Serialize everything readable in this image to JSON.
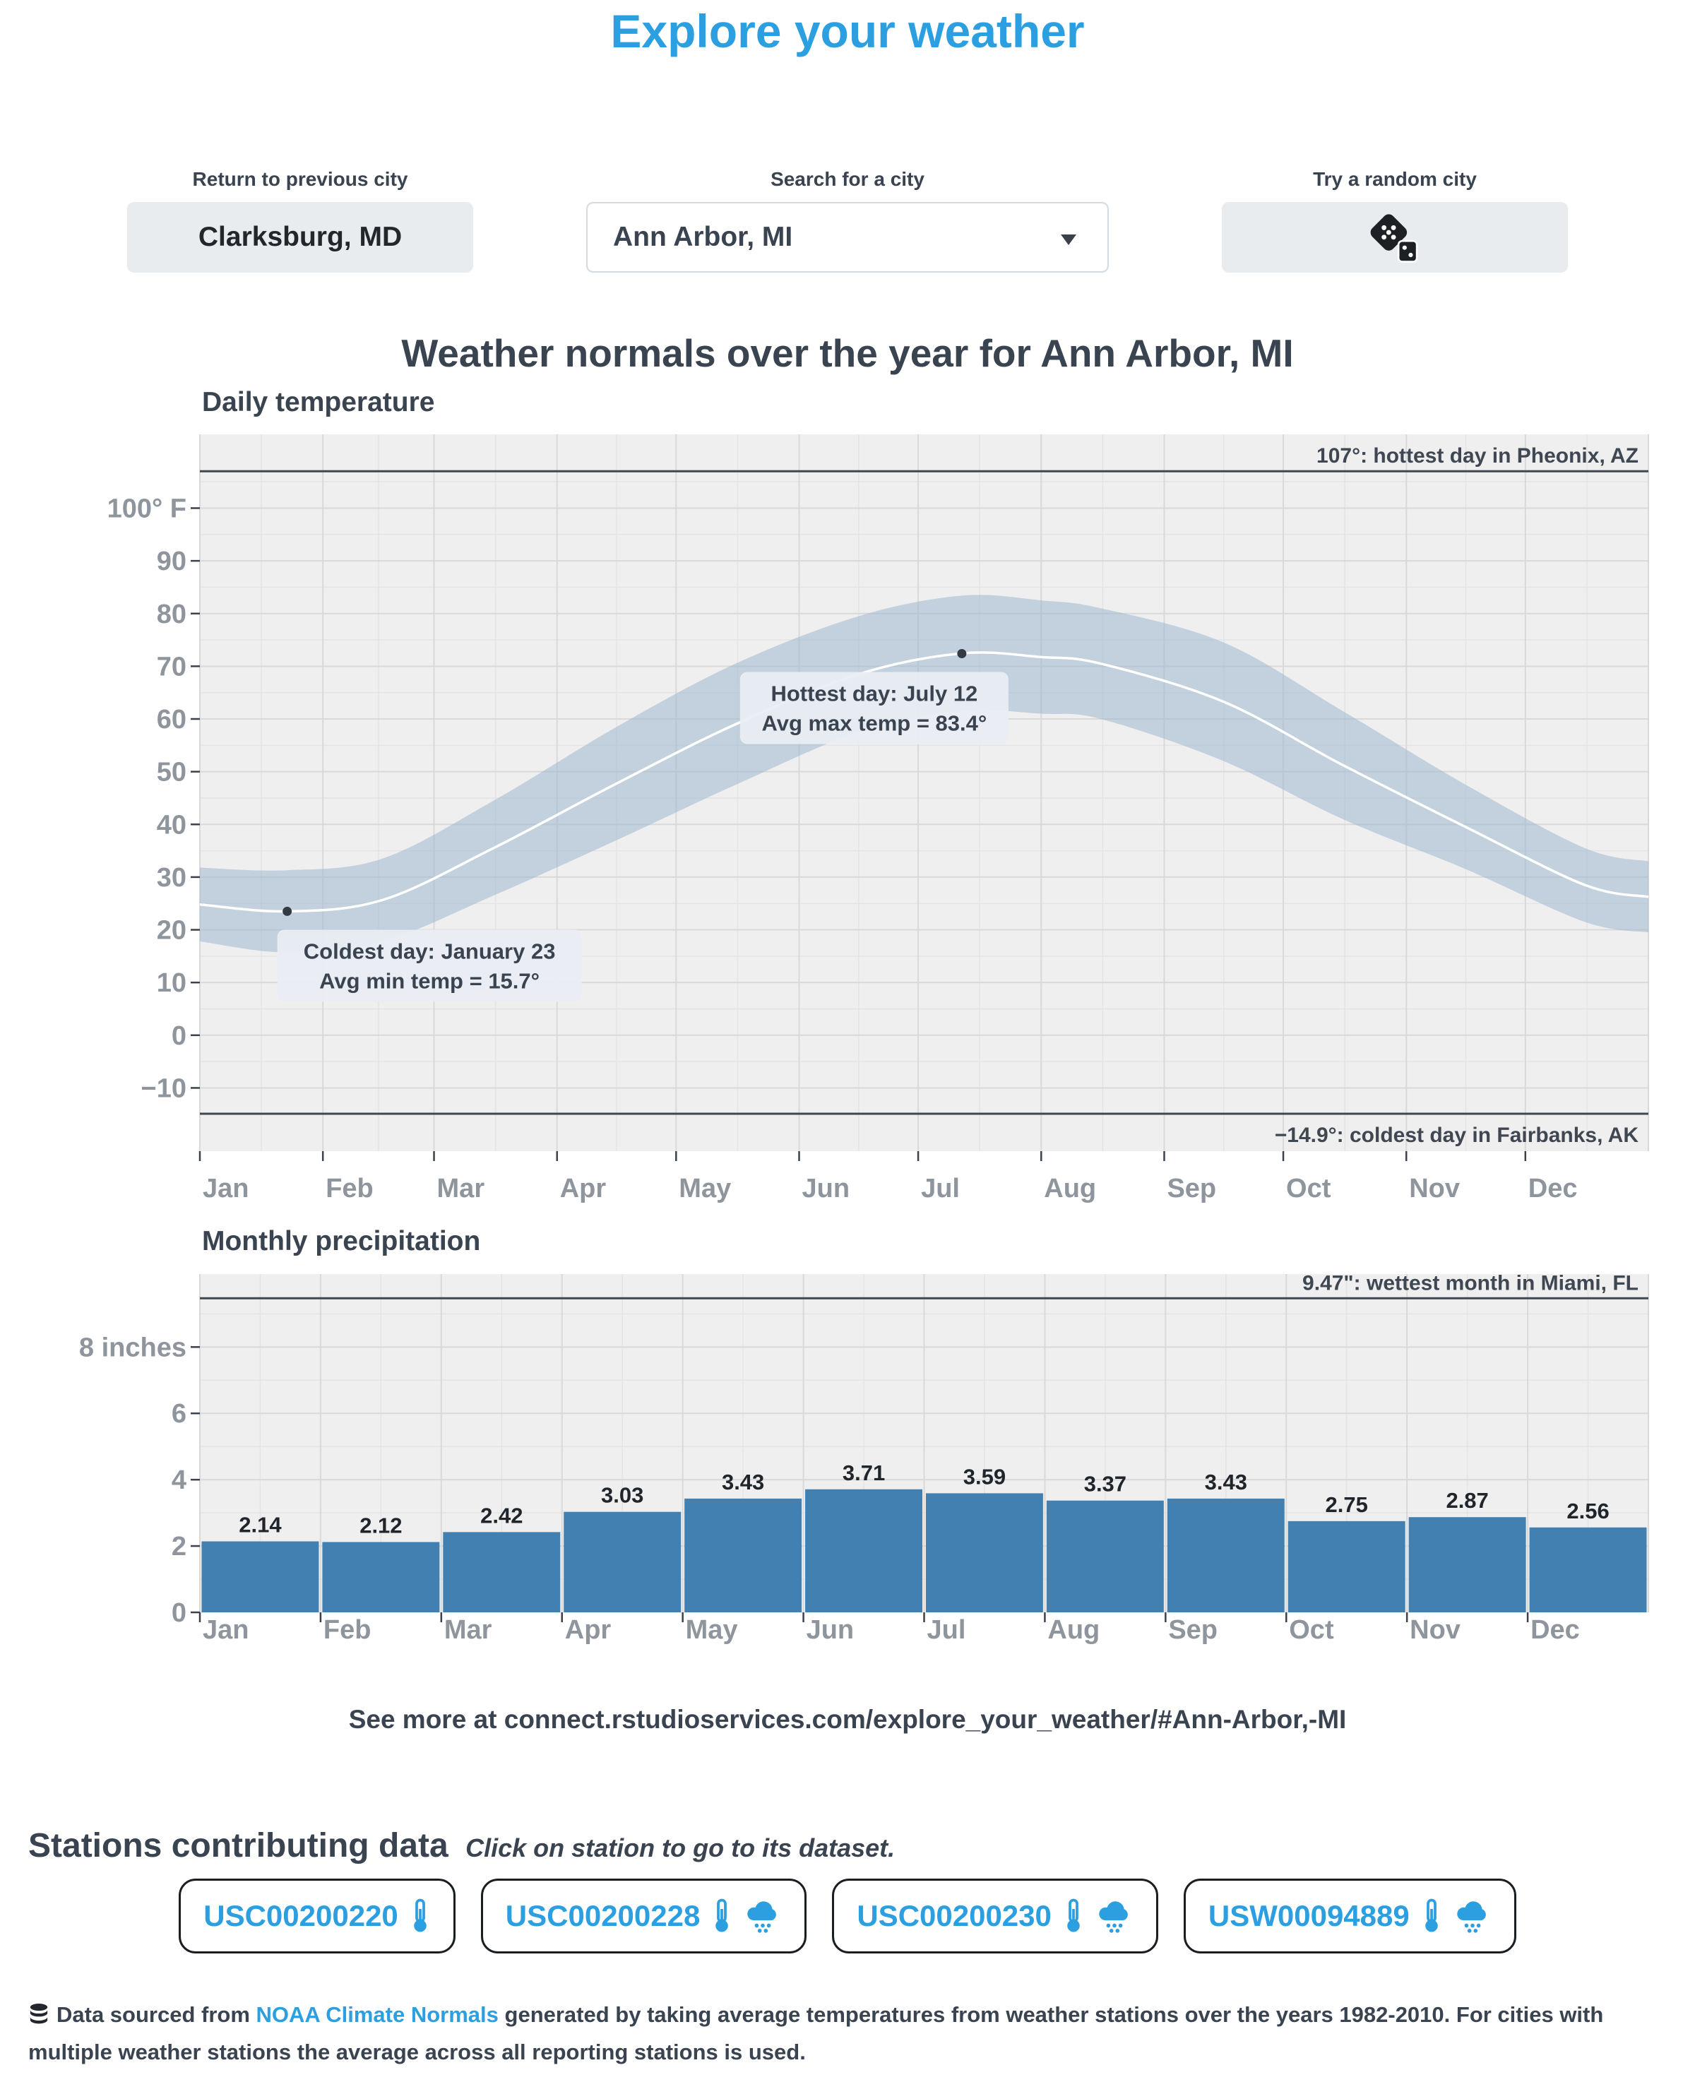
{
  "app": {
    "title": "Explore your weather"
  },
  "controls": {
    "previous": {
      "label": "Return to previous city",
      "button": "Clarksburg, MD"
    },
    "search": {
      "label": "Search for a city",
      "value": "Ann Arbor, MI"
    },
    "random": {
      "label": "Try a random city",
      "icon": "dice-icon"
    }
  },
  "main_title": "Weather normals over the year for Ann Arbor, MI",
  "chart_data": [
    {
      "type": "area",
      "title": "Daily temperature",
      "x_months": [
        "Jan",
        "Feb",
        "Mar",
        "Apr",
        "May",
        "Jun",
        "Jul",
        "Aug",
        "Sep",
        "Oct",
        "Nov",
        "Dec"
      ],
      "month_start_day": [
        0,
        31,
        59,
        90,
        120,
        151,
        181,
        212,
        243,
        273,
        304,
        334
      ],
      "days_in_year": 365,
      "ylim": [
        -22,
        114
      ],
      "yticks": [
        {
          "v": 100,
          "label": "100° F"
        },
        {
          "v": 90,
          "label": "90"
        },
        {
          "v": 80,
          "label": "80"
        },
        {
          "v": 70,
          "label": "70"
        },
        {
          "v": 60,
          "label": "60"
        },
        {
          "v": 50,
          "label": "50"
        },
        {
          "v": 40,
          "label": "40"
        },
        {
          "v": 30,
          "label": "30"
        },
        {
          "v": 20,
          "label": "20"
        },
        {
          "v": 10,
          "label": "10"
        },
        {
          "v": 0,
          "label": "0"
        },
        {
          "v": -10,
          "label": "−10"
        }
      ],
      "series": [
        {
          "name": "avg_max_temp",
          "days": [
            0,
            22,
            46,
            74,
            105,
            135,
            166,
            192,
            212,
            227,
            258,
            288,
            319,
            349,
            365
          ],
          "values": [
            31.8,
            31.3,
            33.5,
            44.5,
            58.5,
            70.5,
            79.5,
            83.4,
            82.5,
            81.0,
            74.5,
            61.5,
            47.5,
            35.5,
            33.0
          ]
        },
        {
          "name": "avg_min_temp",
          "days": [
            0,
            22,
            46,
            74,
            105,
            135,
            166,
            192,
            212,
            227,
            258,
            288,
            319,
            349,
            365
          ],
          "values": [
            17.8,
            15.7,
            17.8,
            26.5,
            37.0,
            47.5,
            57.5,
            61.5,
            61.0,
            60.0,
            52.0,
            41.0,
            31.5,
            21.5,
            19.5
          ]
        }
      ],
      "reference_lines": [
        {
          "value": 107,
          "label": "107°: hottest day in Pheonix, AZ",
          "label_position": "above"
        },
        {
          "value": -14.9,
          "label": "−14.9°: coldest day in Fairbanks, AK",
          "label_position": "below"
        }
      ],
      "annotations": [
        {
          "day": 192,
          "marker_temp": 72.4,
          "side": "left",
          "lines": [
            "Hottest day: July 12",
            "Avg max temp = 83.4°"
          ]
        },
        {
          "day": 22,
          "marker_temp": 23.5,
          "side": "right",
          "lines": [
            "Coldest day: January 23",
            "Avg min temp = 15.7°"
          ]
        }
      ]
    },
    {
      "type": "bar",
      "title": "Monthly precipitation",
      "categories": [
        "Jan",
        "Feb",
        "Mar",
        "Apr",
        "May",
        "Jun",
        "Jul",
        "Aug",
        "Sep",
        "Oct",
        "Nov",
        "Dec"
      ],
      "values": [
        2.14,
        2.12,
        2.42,
        3.03,
        3.43,
        3.71,
        3.59,
        3.37,
        3.43,
        2.75,
        2.87,
        2.56
      ],
      "ylabel": "inches",
      "ylim": [
        0,
        10.2
      ],
      "yticks": [
        {
          "v": 8,
          "label": "8 inches"
        },
        {
          "v": 6,
          "label": "6"
        },
        {
          "v": 4,
          "label": "4"
        },
        {
          "v": 2,
          "label": "2"
        },
        {
          "v": 0,
          "label": "0"
        }
      ],
      "reference_line": {
        "value": 9.47,
        "label": "9.47\": wettest month in Miami, FL"
      }
    }
  ],
  "see_more": "See more at connect.rstudioservices.com/explore_your_weather/#Ann-Arbor,-MI",
  "stations": {
    "heading": "Stations contributing data",
    "subheading": "Click on station to go to its dataset.",
    "items": [
      {
        "id": "USC00200220",
        "icons": [
          "thermometer"
        ]
      },
      {
        "id": "USC00200228",
        "icons": [
          "thermometer",
          "rain"
        ]
      },
      {
        "id": "USC00200230",
        "icons": [
          "thermometer",
          "rain"
        ]
      },
      {
        "id": "USW00094889",
        "icons": [
          "thermometer",
          "rain"
        ]
      }
    ]
  },
  "footer": {
    "prefix": "Data sourced from ",
    "link_text": "NOAA Climate Normals",
    "suffix": " generated by taking average temperatures from weather stations over the years 1982-2010. For cities with multiple weather stations the average across all reporting stations is used."
  },
  "colors": {
    "accent": "#2C9FE0",
    "bar": "#4180B0",
    "band": "#9FB6CE",
    "dark_text": "#3A4350",
    "panel": "#EFEFEF",
    "grid_major": "#D9D9D9",
    "grid_minor": "#E4E4E4",
    "axis_text": "#8E959D",
    "ref_line": "#3F4752",
    "marker": "#343B45",
    "annotation_bg": "#E9EEF4"
  }
}
